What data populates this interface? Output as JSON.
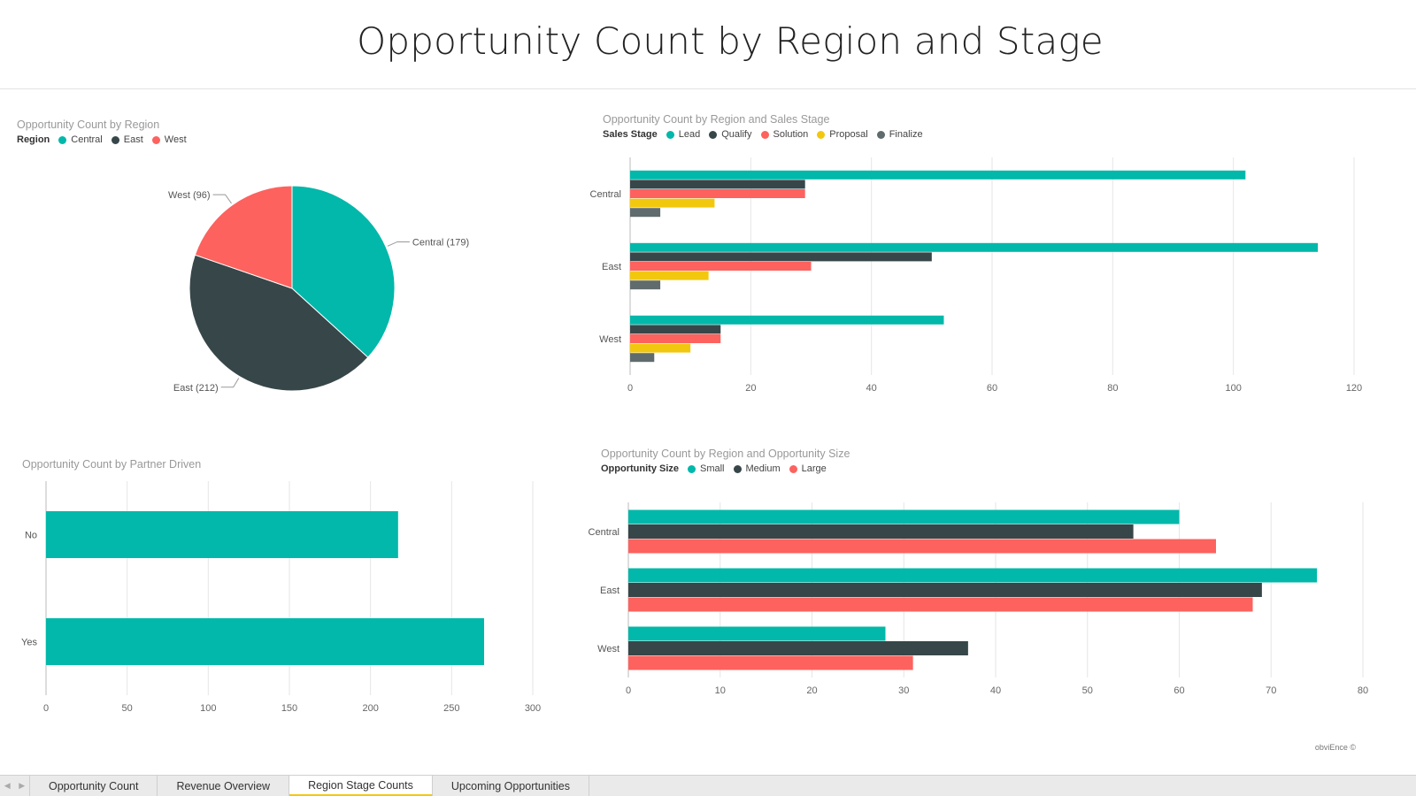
{
  "page": {
    "title": "Opportunity Count by Region and Stage",
    "credit": "obviEnce ©"
  },
  "colors": {
    "teal": "#01b8aa",
    "dark": "#374649",
    "salmon": "#fd625e",
    "yellow": "#f2c80f",
    "gray": "#5f6b6d",
    "grid": "#e6e6e6",
    "axis": "#bbbbbb"
  },
  "tabs": [
    {
      "label": "Opportunity Count",
      "active": false
    },
    {
      "label": "Revenue Overview",
      "active": false
    },
    {
      "label": "Region Stage Counts",
      "active": true
    },
    {
      "label": "Upcoming Opportunities",
      "active": false
    }
  ],
  "chart_data": [
    {
      "id": "pie",
      "type": "pie",
      "title": "Opportunity Count by Region",
      "legend_title": "Region",
      "legend_position": "top-left",
      "slices": [
        {
          "label": "Central",
          "value": 179,
          "data_label": "Central (179)",
          "color": "#01b8aa"
        },
        {
          "label": "East",
          "value": 212,
          "data_label": "East (212)",
          "color": "#374649"
        },
        {
          "label": "West",
          "value": 96,
          "data_label": "West (96)",
          "color": "#fd625e"
        }
      ]
    },
    {
      "id": "stage",
      "type": "bar",
      "orientation": "horizontal",
      "title": "Opportunity Count by Region and Sales Stage",
      "legend_title": "Sales Stage",
      "legend_position": "top-left",
      "categories": [
        "Central",
        "East",
        "West"
      ],
      "series": [
        {
          "name": "Lead",
          "color": "#01b8aa",
          "values": [
            102,
            114,
            52
          ]
        },
        {
          "name": "Qualify",
          "color": "#374649",
          "values": [
            29,
            50,
            15
          ]
        },
        {
          "name": "Solution",
          "color": "#fd625e",
          "values": [
            29,
            30,
            15
          ]
        },
        {
          "name": "Proposal",
          "color": "#f2c80f",
          "values": [
            14,
            13,
            10
          ]
        },
        {
          "name": "Finalize",
          "color": "#5f6b6d",
          "values": [
            5,
            5,
            4
          ]
        }
      ],
      "xlim": [
        0,
        120
      ],
      "xticks": [
        "0",
        "20",
        "40",
        "60",
        "80",
        "100",
        "120"
      ],
      "grid": true
    },
    {
      "id": "partner",
      "type": "bar",
      "orientation": "horizontal",
      "title": "Opportunity Count by Partner Driven",
      "categories": [
        "No",
        "Yes"
      ],
      "series": [
        {
          "name": "",
          "color": "#01b8aa",
          "values": [
            217,
            270
          ]
        }
      ],
      "xlim": [
        0,
        300
      ],
      "xticks": [
        "0",
        "50",
        "100",
        "150",
        "200",
        "250",
        "300"
      ],
      "grid": true
    },
    {
      "id": "size",
      "type": "bar",
      "orientation": "horizontal",
      "title": "Opportunity Count by Region and Opportunity Size",
      "legend_title": "Opportunity Size",
      "legend_position": "top-left",
      "categories": [
        "Central",
        "East",
        "West"
      ],
      "series": [
        {
          "name": "Small",
          "color": "#01b8aa",
          "values": [
            60,
            75,
            28
          ]
        },
        {
          "name": "Medium",
          "color": "#374649",
          "values": [
            55,
            69,
            37
          ]
        },
        {
          "name": "Large",
          "color": "#fd625e",
          "values": [
            64,
            68,
            31
          ]
        }
      ],
      "xlim": [
        0,
        80
      ],
      "xticks": [
        "0",
        "10",
        "20",
        "30",
        "40",
        "50",
        "60",
        "70",
        "80"
      ],
      "grid": true
    }
  ]
}
